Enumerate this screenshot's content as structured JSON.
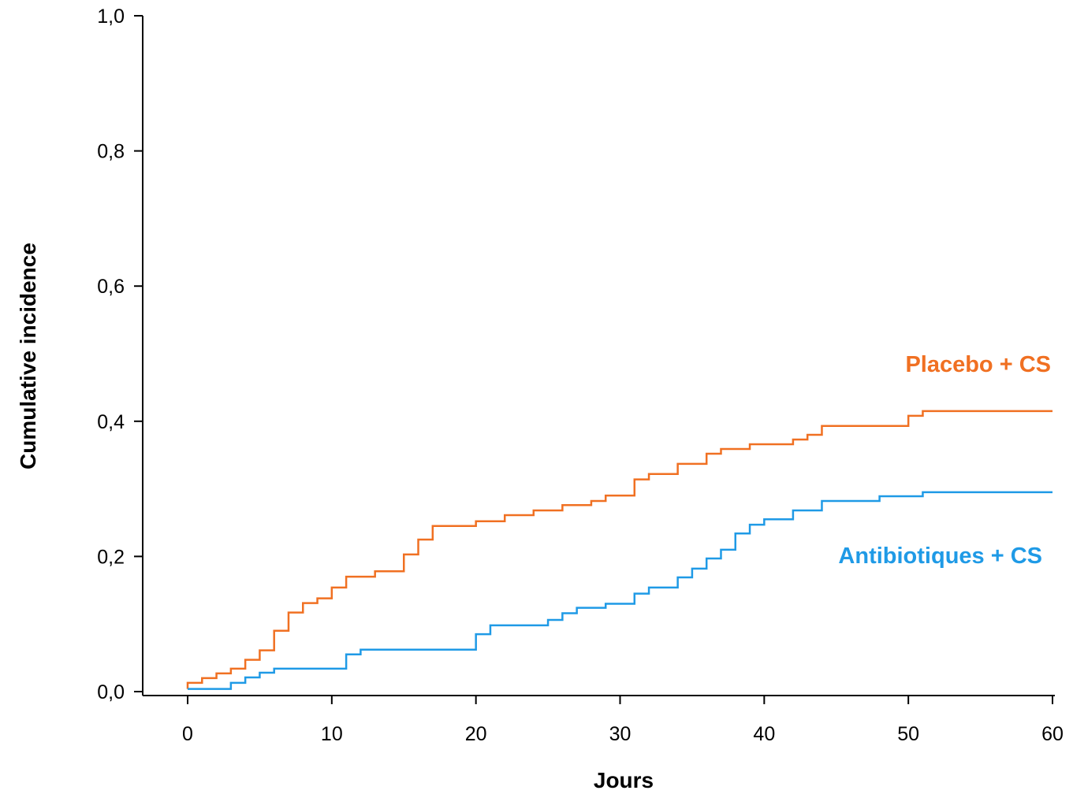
{
  "chart_data": {
    "type": "line",
    "step": true,
    "title": "",
    "xlabel": "Jours",
    "ylabel": "Cumulative incidence",
    "xlim": [
      0,
      60
    ],
    "ylim": [
      0,
      1
    ],
    "x_ticks": [
      0,
      10,
      20,
      30,
      40,
      50,
      60
    ],
    "x_tick_labels": [
      "0",
      "10",
      "20",
      "30",
      "40",
      "50",
      "60"
    ],
    "y_ticks": [
      0,
      0.2,
      0.4,
      0.6,
      0.8,
      1.0
    ],
    "y_tick_labels": [
      "0,0",
      "0,2",
      "0,4",
      "0,6",
      "0,8",
      "1,0"
    ],
    "grid": false,
    "series": [
      {
        "name": "Placebo + CS",
        "color": "#f07022",
        "points": [
          [
            0,
            0.004
          ],
          [
            0,
            0.013
          ],
          [
            1,
            0.02
          ],
          [
            2,
            0.027
          ],
          [
            3,
            0.034
          ],
          [
            4,
            0.047
          ],
          [
            5,
            0.061
          ],
          [
            6,
            0.09
          ],
          [
            7,
            0.117
          ],
          [
            8,
            0.131
          ],
          [
            9,
            0.138
          ],
          [
            10,
            0.154
          ],
          [
            11,
            0.17
          ],
          [
            13,
            0.178
          ],
          [
            15,
            0.203
          ],
          [
            16,
            0.225
          ],
          [
            17,
            0.245
          ],
          [
            20,
            0.252
          ],
          [
            22,
            0.261
          ],
          [
            24,
            0.268
          ],
          [
            26,
            0.276
          ],
          [
            28,
            0.282
          ],
          [
            29,
            0.29
          ],
          [
            31,
            0.314
          ],
          [
            32,
            0.322
          ],
          [
            34,
            0.337
          ],
          [
            36,
            0.352
          ],
          [
            37,
            0.359
          ],
          [
            39,
            0.366
          ],
          [
            42,
            0.373
          ],
          [
            43,
            0.38
          ],
          [
            44,
            0.393
          ],
          [
            50,
            0.408
          ],
          [
            51,
            0.415
          ],
          [
            60,
            0.415
          ]
        ]
      },
      {
        "name": "Antibiotiques + CS",
        "color": "#1f9ae6",
        "points": [
          [
            0,
            0.004
          ],
          [
            3,
            0.013
          ],
          [
            4,
            0.021
          ],
          [
            5,
            0.028
          ],
          [
            6,
            0.034
          ],
          [
            11,
            0.055
          ],
          [
            12,
            0.062
          ],
          [
            20,
            0.085
          ],
          [
            21,
            0.098
          ],
          [
            25,
            0.106
          ],
          [
            26,
            0.116
          ],
          [
            27,
            0.124
          ],
          [
            29,
            0.13
          ],
          [
            31,
            0.145
          ],
          [
            32,
            0.154
          ],
          [
            34,
            0.169
          ],
          [
            35,
            0.182
          ],
          [
            36,
            0.197
          ],
          [
            37,
            0.21
          ],
          [
            38,
            0.234
          ],
          [
            39,
            0.247
          ],
          [
            40,
            0.255
          ],
          [
            42,
            0.268
          ],
          [
            44,
            0.282
          ],
          [
            48,
            0.289
          ],
          [
            51,
            0.295
          ],
          [
            60,
            0.295
          ]
        ]
      }
    ]
  }
}
